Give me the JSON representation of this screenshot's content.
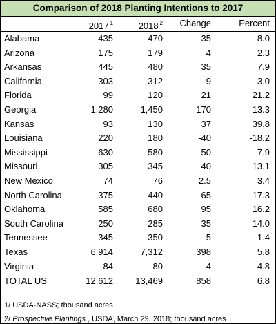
{
  "title": "Comparison of 2018 Planting Intentions to 2017",
  "table": {
    "header": [
      {
        "label": "2017",
        "sup": "1"
      },
      {
        "label": "2018",
        "sup": "2"
      },
      {
        "label": "Change"
      },
      {
        "label": "Percent"
      }
    ],
    "rows": [
      [
        "Alabama",
        "435",
        "470",
        "35",
        "8.0"
      ],
      [
        "Arizona",
        "175",
        "179",
        "4",
        "2.3"
      ],
      [
        "Arkansas",
        "445",
        "480",
        "35",
        "7.9"
      ],
      [
        "California",
        "303",
        "312",
        "9",
        "3.0"
      ],
      [
        "Florida",
        "99",
        "120",
        "21",
        "21.2"
      ],
      [
        "Georgia",
        "1,280",
        "1,450",
        "170",
        "13.3"
      ],
      [
        "Kansas",
        "93",
        "130",
        "37",
        "39.8"
      ],
      [
        "Louisiana",
        "220",
        "180",
        "-40",
        "-18.2"
      ],
      [
        "Mississippi",
        "630",
        "580",
        "-50",
        "-7.9"
      ],
      [
        "Missouri",
        "305",
        "345",
        "40",
        "13.1"
      ],
      [
        "New Mexico",
        "74",
        "76",
        "2.5",
        "3.4"
      ],
      [
        "North Carolina",
        "375",
        "440",
        "65",
        "17.3"
      ],
      [
        "Oklahoma",
        "585",
        "680",
        "95",
        "16.2"
      ],
      [
        "South Carolina",
        "250",
        "285",
        "35",
        "14.0"
      ],
      [
        "Tennessee",
        "345",
        "350",
        "5",
        "1.4"
      ],
      [
        "Texas",
        "6,914",
        "7,312",
        "398",
        "5.8"
      ],
      [
        "Virginia",
        "84",
        "80",
        "-4",
        "-4.8"
      ]
    ],
    "total": [
      "TOTAL US",
      "12,612",
      "13,469",
      "858",
      "6.8"
    ]
  },
  "notes": [
    {
      "parts": [
        "1/ USDA-NASS; thousand acres"
      ]
    },
    {
      "parts": [
        "2/ ",
        "Prospective Plantings",
        " , USDA, March 29, 2018; thousand acres"
      ]
    }
  ]
}
